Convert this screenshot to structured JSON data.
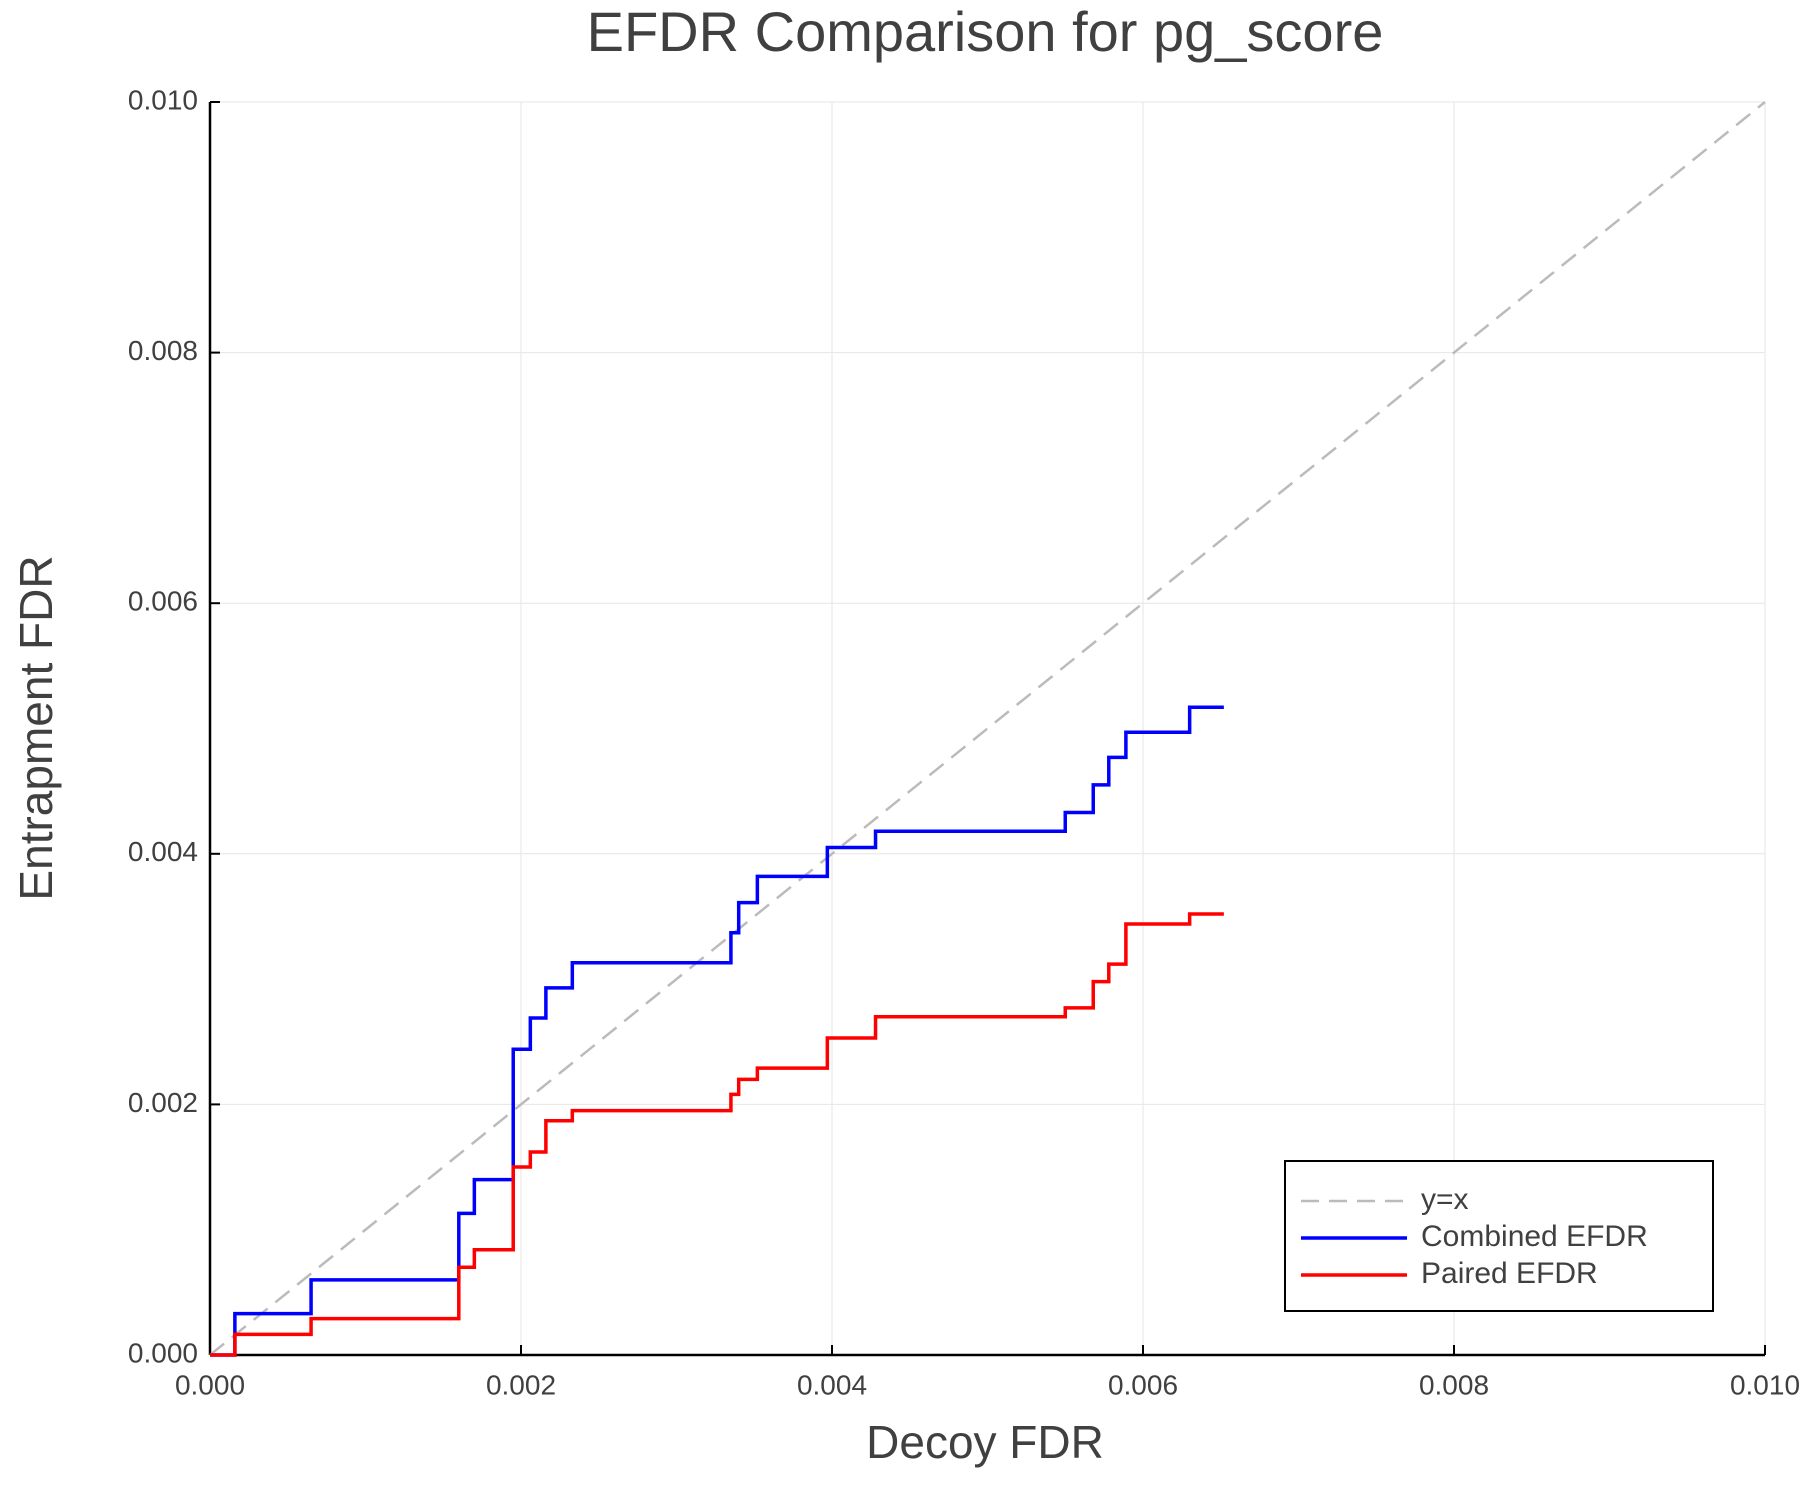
{
  "chart_data": {
    "type": "line",
    "step": "post",
    "title": "EFDR Comparison for pg_score",
    "x_label": "Decoy FDR",
    "y_label": "Entrapment FDR",
    "xlim": [
      0,
      0.01
    ],
    "ylim": [
      0,
      0.01
    ],
    "xticks": [
      {
        "value": 0,
        "label": "0.000"
      },
      {
        "value": 0.002,
        "label": "0.002"
      },
      {
        "value": 0.004,
        "label": "0.004"
      },
      {
        "value": 0.006,
        "label": "0.006"
      },
      {
        "value": 0.008,
        "label": "0.008"
      },
      {
        "value": 0.01,
        "label": "0.010"
      }
    ],
    "yticks": [
      {
        "value": 0,
        "label": "0.000"
      },
      {
        "value": 0.002,
        "label": "0.002"
      },
      {
        "value": 0.004,
        "label": "0.004"
      },
      {
        "value": 0.006,
        "label": "0.006"
      },
      {
        "value": 0.008,
        "label": "0.008"
      },
      {
        "value": 0.01,
        "label": "0.010"
      }
    ],
    "grid": true,
    "legend": "lower right",
    "series": [
      {
        "name": "y=x",
        "color": "#bbbbbb",
        "dashed": true,
        "step": false,
        "x": [
          0,
          0.01
        ],
        "values": [
          0,
          0.01
        ]
      },
      {
        "name": "Combined EFDR",
        "color": "#0000ff",
        "x": [
          0,
          0.00016,
          0.00065,
          0.0016,
          0.0017,
          0.00195,
          0.00206,
          0.00216,
          0.00233,
          0.00335,
          0.0034,
          0.00352,
          0.00397,
          0.00428,
          0.0055,
          0.00568,
          0.00578,
          0.00589,
          0.0063,
          0.00652
        ],
        "values": [
          0,
          0.00033,
          0.0006,
          0.00113,
          0.0014,
          0.00244,
          0.00269,
          0.00293,
          0.00313,
          0.00337,
          0.00361,
          0.00382,
          0.00405,
          0.00418,
          0.00433,
          0.00455,
          0.00477,
          0.00497,
          0.00517,
          0.00517
        ]
      },
      {
        "name": "Paired EFDR",
        "color": "#ff0000",
        "x": [
          0,
          0.00016,
          0.00065,
          0.0016,
          0.0017,
          0.00195,
          0.00206,
          0.00216,
          0.00233,
          0.00335,
          0.0034,
          0.00352,
          0.00397,
          0.00428,
          0.0055,
          0.00568,
          0.00578,
          0.00589,
          0.0063,
          0.00652
        ],
        "values": [
          0,
          0.000165,
          0.00029,
          0.0007,
          0.00084,
          0.0015,
          0.00162,
          0.00187,
          0.00195,
          0.00208,
          0.0022,
          0.00229,
          0.00253,
          0.0027,
          0.00277,
          0.00298,
          0.00312,
          0.00344,
          0.00352,
          0.00352
        ]
      }
    ]
  }
}
